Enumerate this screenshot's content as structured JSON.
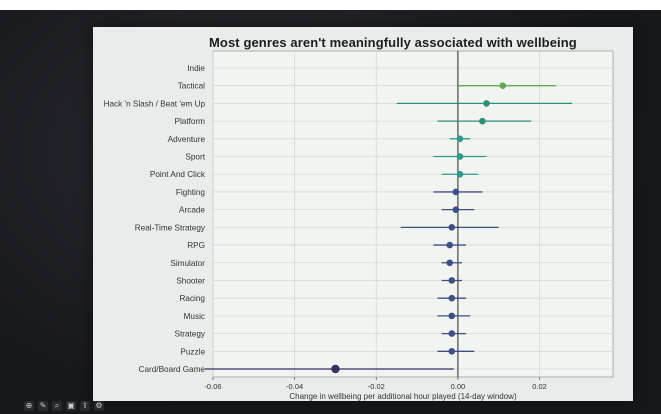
{
  "toolbar": {
    "icons": [
      "zoom-icon",
      "edit-icon",
      "search-icon",
      "image-icon",
      "share-icon",
      "settings-icon"
    ]
  },
  "chart_data": {
    "type": "scatter",
    "title": "Most genres aren't meaningfully associated with wellbeing",
    "xlabel": "Change in wellbeing per additional hour played (14-day window)",
    "ylabel": "",
    "xlim": [
      -0.06,
      0.038
    ],
    "xticks": [
      -0.06,
      -0.04,
      -0.02,
      0.0,
      0.02
    ],
    "xtick_labels": [
      "-0.06",
      "-0.04",
      "-0.02",
      "0.00",
      "0.02"
    ],
    "categories": [
      "Indie",
      "Tactical",
      "Hack 'n Slash / Beat 'em Up",
      "Platform",
      "Adventure",
      "Sport",
      "Point And Click",
      "Fighting",
      "Arcade",
      "Real-Time Strategy",
      "RPG",
      "Simulator",
      "Shooter",
      "Racing",
      "Music",
      "Strategy",
      "Puzzle",
      "Card/Board Game"
    ],
    "estimate": [
      null,
      0.011,
      0.007,
      0.006,
      0.0005,
      0.0005,
      0.0005,
      -0.0005,
      -0.0005,
      -0.0015,
      -0.002,
      -0.002,
      -0.0015,
      -0.0015,
      -0.0015,
      -0.0015,
      -0.0015,
      -0.03
    ],
    "ci_low": [
      null,
      0.0,
      -0.015,
      -0.005,
      -0.002,
      -0.006,
      -0.004,
      -0.006,
      -0.004,
      -0.014,
      -0.006,
      -0.004,
      -0.004,
      -0.005,
      -0.005,
      -0.004,
      -0.005,
      -0.062
    ],
    "ci_high": [
      null,
      0.024,
      0.028,
      0.018,
      0.003,
      0.007,
      0.005,
      0.006,
      0.004,
      0.01,
      0.002,
      0.001,
      0.001,
      0.002,
      0.003,
      0.002,
      0.004,
      -0.001
    ],
    "grid": true,
    "zero_line": true,
    "colors": {
      "high": "#62a84e",
      "mid": "#2f8f78",
      "teal": "#2f9a8c",
      "low": "#3e4f86",
      "card": "#3a2f5f"
    }
  }
}
